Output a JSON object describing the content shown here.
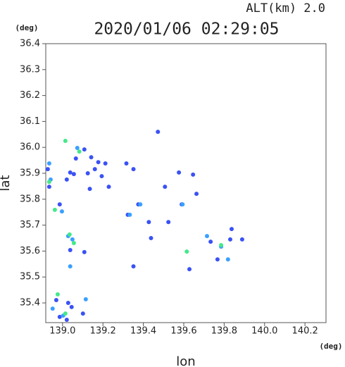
{
  "chart_data": {
    "type": "scatter",
    "title": "2020/01/06 02:29:05",
    "annotation": "ALT(km)  2.0",
    "y_unit": "(deg)",
    "x_unit": "(deg)",
    "xlabel": "lon",
    "ylabel": "lat",
    "xlim": [
      138.917,
      140.304
    ],
    "ylim": [
      35.324,
      36.4
    ],
    "xticks": [
      {
        "value": 139,
        "label": "139.0"
      },
      139.2,
      139.4,
      139.6,
      139.8,
      {
        "value": 140,
        "label": "140.0"
      },
      140.2
    ],
    "yticks": [
      35.4,
      35.5,
      35.6,
      35.7,
      35.8,
      35.9,
      {
        "value": 36,
        "label": "36.0"
      },
      36.1,
      36.2,
      36.3,
      36.4
    ],
    "series": [
      {
        "color": "#3a52f5",
        "x": [
          138.927,
          138.934,
          138.986,
          139.038,
          139.056,
          139.021,
          139.066,
          139.108,
          139.142,
          139.125,
          139.135,
          139.177,
          139.212,
          139.229,
          139.316,
          139.351,
          139.375,
          139.323,
          139.427,
          139.472,
          139.524,
          139.59,
          139.663,
          139.733,
          139.767,
          139.83,
          139.837,
          139.889,
          139.108,
          139.038,
          138.969,
          139.028,
          139.045,
          139.101,
          138.986,
          139.021,
          139.16,
          139.194,
          139.576,
          139.646,
          139.507,
          139.628,
          139.438,
          139.351
        ],
        "y": [
          35.916,
          35.848,
          35.78,
          35.903,
          35.897,
          35.876,
          35.957,
          35.992,
          35.962,
          35.9,
          35.84,
          35.943,
          35.938,
          35.848,
          35.938,
          35.916,
          35.78,
          35.74,
          35.712,
          36.06,
          35.712,
          35.78,
          35.821,
          35.636,
          35.568,
          35.645,
          35.685,
          35.645,
          35.596,
          35.604,
          35.411,
          35.4,
          35.384,
          35.359,
          35.346,
          35.335,
          35.916,
          35.889,
          35.903,
          35.895,
          35.848,
          35.53,
          35.65,
          35.541
        ]
      },
      {
        "color": "#3aa0ff",
        "x": [
          138.934,
          138.941,
          139.073,
          138.997,
          139.028,
          139.049,
          139.038,
          139.115,
          138.951,
          139.003,
          139.594,
          139.715,
          139.785,
          139.819,
          139.333,
          139.385
        ],
        "y": [
          35.938,
          35.876,
          35.998,
          35.753,
          35.658,
          35.645,
          35.541,
          35.414,
          35.378,
          35.351,
          35.78,
          35.658,
          35.617,
          35.568,
          35.74,
          35.78
        ]
      },
      {
        "color": "#44e88a",
        "x": [
          139.014,
          138.962,
          139.035,
          138.934,
          139.083,
          138.976,
          139.615,
          139.785,
          139.056,
          139.014
        ],
        "y": [
          36.025,
          35.759,
          35.664,
          35.867,
          35.984,
          35.433,
          35.598,
          35.623,
          35.631,
          35.359
        ]
      }
    ]
  }
}
